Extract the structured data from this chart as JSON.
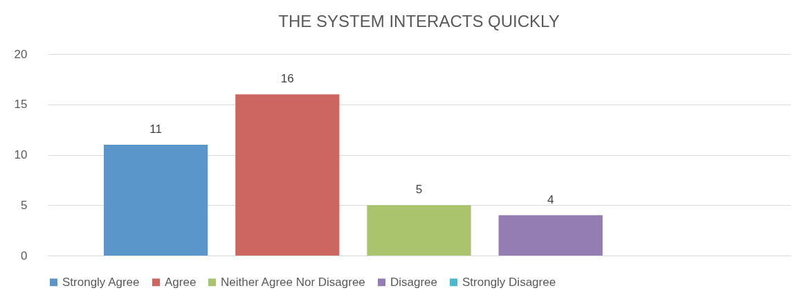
{
  "chart_data": {
    "type": "bar",
    "title": "THE SYSTEM INTERACTS QUICKLY",
    "categories": [
      null
    ],
    "series": [
      {
        "name": "Strongly Agree",
        "color": "#5b96cb",
        "values": [
          11
        ]
      },
      {
        "name": "Agree",
        "color": "#cd6660",
        "values": [
          16
        ]
      },
      {
        "name": "Neither Agree Nor Disagree",
        "color": "#a9c46c",
        "values": [
          5
        ]
      },
      {
        "name": "Disagree",
        "color": "#947db3",
        "values": [
          4
        ]
      },
      {
        "name": "Strongly Disagree",
        "color": "#4bb8cf",
        "values": [
          null
        ]
      }
    ],
    "ylim": [
      0,
      20
    ],
    "yticks": [
      0,
      5,
      10,
      15,
      20
    ],
    "grid": "y",
    "legend": "bottom",
    "data_labels": true,
    "tick_labels": "y"
  }
}
